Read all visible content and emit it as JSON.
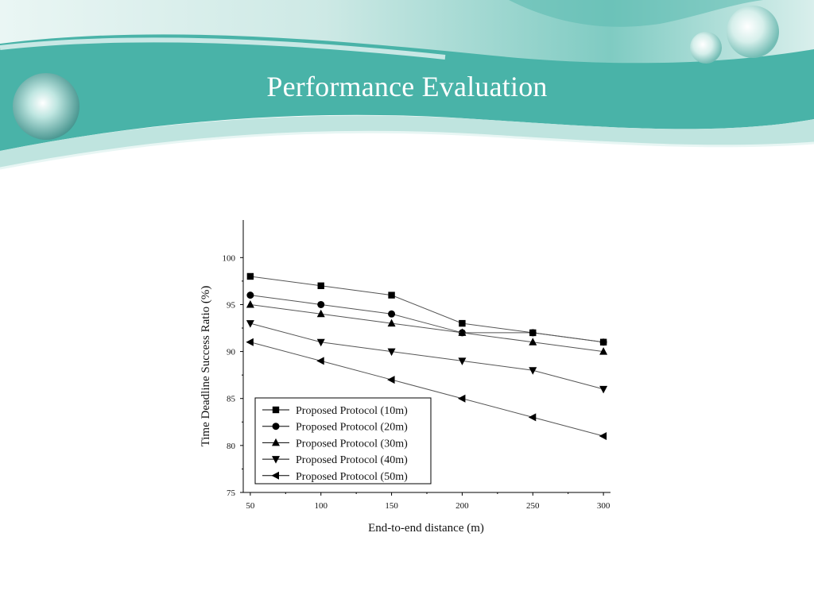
{
  "slide": {
    "title": "Performance Evaluation"
  },
  "theme": {
    "banner_dark": "#49b3a8",
    "banner_light": "#d6efec",
    "title_color": "#ffffff"
  },
  "chart_data": {
    "type": "line",
    "title": "",
    "xlabel": "End-to-end distance (m)",
    "ylabel": "Time Deadline Success Ratio (%)",
    "x": [
      50,
      100,
      150,
      200,
      250,
      300
    ],
    "xticks": [
      "50",
      "100",
      "150",
      "200",
      "250",
      "300"
    ],
    "yticks": [
      "75",
      "80",
      "85",
      "90",
      "95",
      "100"
    ],
    "xlim": [
      45,
      305
    ],
    "ylim": [
      75,
      104
    ],
    "grid": false,
    "legend_position": "bottom-left",
    "series": [
      {
        "name": "Proposed Protocol (10m)",
        "marker": "square",
        "values": [
          98,
          97,
          96,
          93,
          92,
          91
        ]
      },
      {
        "name": "Proposed Protocol (20m)",
        "marker": "circle",
        "values": [
          96,
          95,
          94,
          92,
          92,
          91
        ]
      },
      {
        "name": "Proposed Protocol (30m)",
        "marker": "triangle-up",
        "values": [
          95,
          94,
          93,
          92,
          91,
          90
        ]
      },
      {
        "name": "Proposed Protocol (40m)",
        "marker": "triangle-down",
        "values": [
          93,
          91,
          90,
          89,
          88,
          86
        ]
      },
      {
        "name": "Proposed Protocol (50m)",
        "marker": "triangle-left",
        "values": [
          91,
          89,
          87,
          85,
          83,
          81
        ]
      }
    ]
  }
}
